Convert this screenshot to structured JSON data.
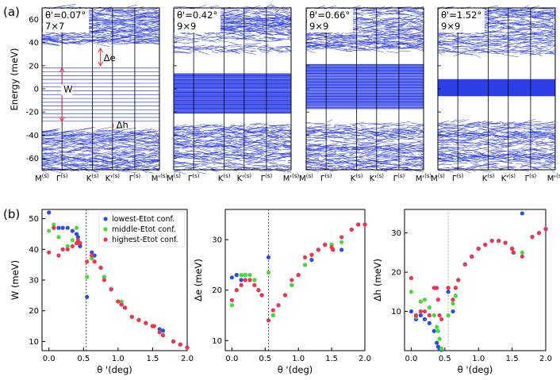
{
  "labels": {
    "a": "(a)",
    "b": "(b)"
  },
  "band_axis": {
    "ylabel": "Energy (meV)",
    "ylim": [
      -70,
      70
    ],
    "yticks": [
      -60,
      -40,
      -20,
      0,
      20,
      40,
      60
    ],
    "kpoints": [
      "M(s)",
      "Γ(s)",
      "K(s)",
      "K'(s)",
      "Γ(s)",
      "M'(s)"
    ]
  },
  "band_panels": [
    {
      "angle_label": "θ'=0.07°",
      "cell_label": "7×7",
      "flat": [
        -28,
        18
      ],
      "gap_min": -70,
      "gap_max": 70
    },
    {
      "angle_label": "θ'=0.42°",
      "cell_label": "9×9",
      "flat": [
        -21,
        13
      ],
      "gap_e": 30,
      "gap_h": -30
    },
    {
      "angle_label": "θ'=0.66°",
      "cell_label": "9×9",
      "flat": [
        -17,
        21
      ],
      "gap_e": 33,
      "gap_h": -30
    },
    {
      "angle_label": "θ'=1.52°",
      "cell_label": "9×9",
      "flat": [
        -6,
        8
      ],
      "gap_e": 30,
      "gap_h": -30
    }
  ],
  "annotations": {
    "W": "W",
    "delta_e": "Δe",
    "delta_h": "Δh"
  },
  "legend": [
    {
      "label": "lowest-Etot conf.",
      "color": "#2a4ce0"
    },
    {
      "label": "middle-Etot conf.",
      "color": "#44dd33"
    },
    {
      "label": "highest-Etot conf.",
      "color": "#ee3355"
    }
  ],
  "chart_data": [
    {
      "type": "scatter",
      "ylabel": "W (meV)",
      "xlabel": "θ '(deg)",
      "xlim": [
        -0.1,
        2.0
      ],
      "ylim": [
        7,
        53
      ],
      "yticks": [
        10,
        20,
        30,
        40,
        50
      ],
      "xticks": [
        0.0,
        0.5,
        1.0,
        1.5,
        2.0
      ],
      "vline": 0.54,
      "series": [
        {
          "name": "lowest-Etot conf.",
          "x": [
            0.0,
            0.07,
            0.14,
            0.2,
            0.27,
            0.34,
            0.4,
            0.42,
            0.45,
            0.55,
            0.62,
            0.66,
            0.75,
            0.8,
            0.9,
            1.0,
            1.05,
            1.1,
            1.2,
            1.3,
            1.4,
            1.5,
            1.52,
            1.6,
            1.65,
            1.8,
            1.9,
            2.0
          ],
          "y": [
            52,
            47,
            47,
            47,
            47,
            46,
            45,
            44,
            41,
            24.5,
            39,
            38,
            34,
            31,
            27,
            23,
            22,
            21,
            18,
            17,
            16,
            15,
            15,
            14,
            13.5,
            10,
            9,
            8
          ]
        },
        {
          "name": "middle-Etot conf.",
          "x": [
            0.0,
            0.07,
            0.14,
            0.2,
            0.27,
            0.34,
            0.4,
            0.42,
            0.45,
            0.55,
            0.62,
            0.66,
            0.75,
            0.8,
            0.9,
            1.0,
            1.05,
            1.1,
            1.2,
            1.3,
            1.4,
            1.5,
            1.52,
            1.6,
            1.65,
            1.8,
            1.9,
            2.0
          ],
          "y": [
            46,
            48,
            44,
            40,
            41,
            43,
            47,
            42,
            42,
            31,
            37,
            36,
            34,
            31,
            27,
            23,
            23,
            21,
            18,
            17,
            16,
            15,
            15,
            13,
            12,
            10,
            9,
            8
          ]
        },
        {
          "name": "highest-Etot conf.",
          "x": [
            0.0,
            0.07,
            0.14,
            0.2,
            0.27,
            0.34,
            0.4,
            0.42,
            0.45,
            0.55,
            0.62,
            0.66,
            0.75,
            0.8,
            0.9,
            1.0,
            1.05,
            1.1,
            1.2,
            1.3,
            1.4,
            1.5,
            1.52,
            1.6,
            1.65,
            1.8,
            1.9,
            2.0
          ],
          "y": [
            39,
            47,
            38,
            40,
            40,
            41,
            42,
            43,
            42,
            36,
            38,
            36,
            34,
            30,
            27,
            23,
            22,
            21,
            18,
            17,
            16,
            15,
            15,
            13,
            12,
            10,
            9,
            8
          ]
        }
      ]
    },
    {
      "type": "scatter",
      "ylabel": "Δe (meV)",
      "xlabel": "θ '(deg)",
      "xlim": [
        -0.1,
        2.0
      ],
      "ylim": [
        8,
        36
      ],
      "yticks": [
        10,
        20,
        30
      ],
      "xticks": [
        0.0,
        0.5,
        1.0,
        1.5,
        2.0
      ],
      "vline": 0.55,
      "series": [
        {
          "name": "lowest-Etot conf.",
          "x": [
            0.0,
            0.07,
            0.14,
            0.2,
            0.27,
            0.34,
            0.4,
            0.45,
            0.55,
            0.62,
            0.7,
            0.8,
            0.9,
            1.0,
            1.1,
            1.2,
            1.3,
            1.4,
            1.5,
            1.52,
            1.65,
            1.8,
            1.9,
            2.0
          ],
          "y": [
            22.5,
            23,
            22,
            23,
            22,
            22,
            20,
            19,
            26.5,
            15,
            17,
            19,
            21,
            23,
            25,
            26,
            28,
            29,
            29,
            28,
            28,
            32,
            33,
            33
          ]
        },
        {
          "name": "middle-Etot conf.",
          "x": [
            0.0,
            0.07,
            0.14,
            0.2,
            0.27,
            0.34,
            0.4,
            0.45,
            0.55,
            0.62,
            0.7,
            0.8,
            0.9,
            1.0,
            1.1,
            1.2,
            1.3,
            1.4,
            1.5,
            1.52,
            1.65,
            1.8,
            1.9,
            2.0
          ],
          "y": [
            17,
            20,
            23,
            23,
            23,
            22,
            20,
            19,
            23.5,
            15,
            17,
            19,
            21,
            23,
            25,
            27,
            28,
            29,
            29,
            28,
            29.5,
            32,
            33,
            33
          ]
        },
        {
          "name": "highest-Etot conf.",
          "x": [
            0.0,
            0.07,
            0.14,
            0.2,
            0.27,
            0.34,
            0.4,
            0.45,
            0.55,
            0.62,
            0.7,
            0.8,
            0.9,
            1.0,
            1.1,
            1.2,
            1.3,
            1.4,
            1.5,
            1.52,
            1.65,
            1.8,
            1.9,
            2.0
          ],
          "y": [
            18,
            20,
            21,
            22,
            22,
            21,
            20,
            19,
            14,
            16,
            17,
            19,
            22,
            23,
            26.5,
            27,
            28,
            29,
            28.5,
            28,
            30.5,
            32,
            33,
            33
          ]
        }
      ]
    },
    {
      "type": "scatter",
      "ylabel": "Δh (meV)",
      "xlabel": "θ '(deg)",
      "xlim": [
        -0.1,
        2.0
      ],
      "ylim": [
        0,
        36
      ],
      "yticks": [
        10,
        20,
        30
      ],
      "xticks": [
        0.0,
        0.5,
        1.0,
        1.5,
        2.0
      ],
      "vline": 0.55,
      "series": [
        {
          "name": "lowest-Etot conf.",
          "x": [
            0.0,
            0.07,
            0.14,
            0.2,
            0.27,
            0.34,
            0.38,
            0.4,
            0.42,
            0.45,
            0.55,
            0.62,
            0.66,
            0.7,
            0.8,
            0.9,
            1.0,
            1.1,
            1.2,
            1.3,
            1.4,
            1.5,
            1.52,
            1.65,
            1.8,
            1.9,
            2.0
          ],
          "y": [
            10,
            8,
            9,
            8,
            7,
            5,
            2,
            1,
            0.5,
            0.2,
            15,
            10,
            14,
            18,
            22,
            24,
            26,
            27,
            28,
            28,
            27.5,
            26,
            25,
            35,
            29,
            30,
            31
          ]
        },
        {
          "name": "middle-Etot conf.",
          "x": [
            0.0,
            0.07,
            0.14,
            0.2,
            0.27,
            0.34,
            0.38,
            0.4,
            0.42,
            0.45,
            0.55,
            0.62,
            0.66,
            0.7,
            0.8,
            0.9,
            1.0,
            1.1,
            1.2,
            1.3,
            1.4,
            1.5,
            1.52,
            1.65,
            1.8,
            1.9,
            2.0
          ],
          "y": [
            15,
            8.5,
            12.5,
            13,
            11,
            9,
            6,
            5,
            3,
            0.5,
            9,
            12,
            14,
            18,
            22,
            24,
            26,
            27,
            28,
            28,
            27.5,
            26,
            25,
            25,
            29,
            30,
            31
          ]
        },
        {
          "name": "highest-Etot conf.",
          "x": [
            0.0,
            0.07,
            0.14,
            0.2,
            0.27,
            0.34,
            0.38,
            0.4,
            0.42,
            0.45,
            0.55,
            0.62,
            0.66,
            0.7,
            0.8,
            0.9,
            1.0,
            1.1,
            1.2,
            1.3,
            1.4,
            1.5,
            1.52,
            1.65,
            1.8,
            1.9,
            2.0
          ],
          "y": [
            18.5,
            9,
            10,
            10,
            9,
            16,
            16,
            13,
            9,
            8,
            16,
            13,
            16,
            18,
            22,
            24,
            26,
            27,
            28,
            28,
            27.5,
            26,
            25,
            24,
            29,
            30,
            31
          ]
        }
      ]
    }
  ]
}
